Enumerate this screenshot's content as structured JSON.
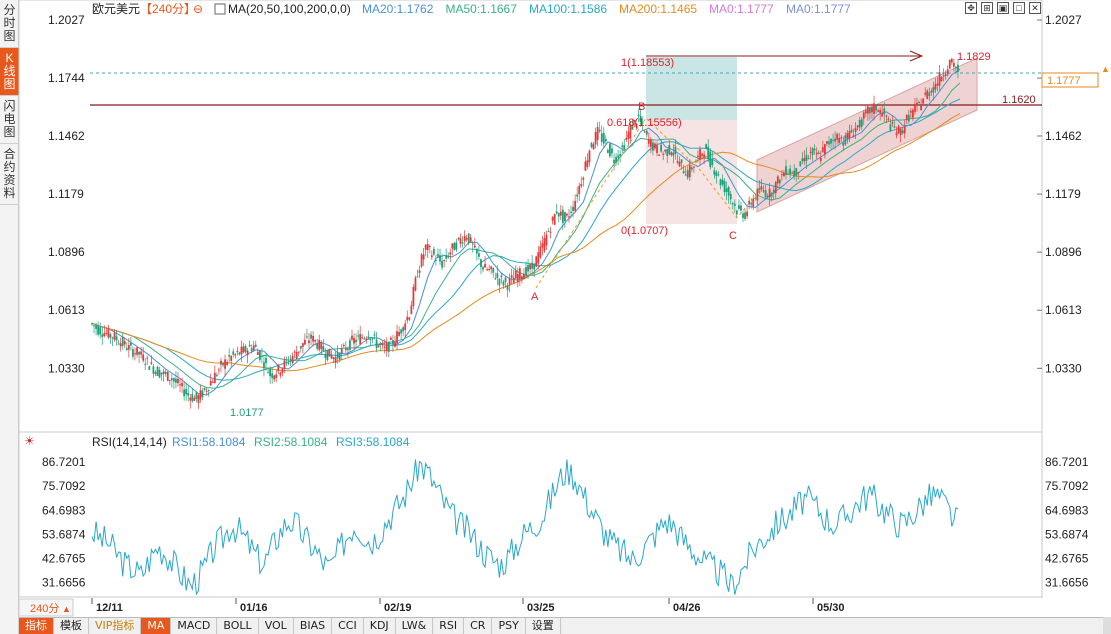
{
  "left_tabs": [
    {
      "label": "分时图",
      "active": false
    },
    {
      "label": "K线图",
      "active": true
    },
    {
      "label": "闪电图",
      "active": false
    },
    {
      "label": "合约资料",
      "active": false
    }
  ],
  "header": {
    "symbol": "欧元美元",
    "period": "【240分】",
    "ma_params": "MA(20,50,100,200,0,0)",
    "ma_values": [
      {
        "text": "MA20:1.1762",
        "color": "#4a90d9"
      },
      {
        "text": "MA50:1.1667",
        "color": "#3bb08a"
      },
      {
        "text": "MA100:1.1586",
        "color": "#2aa7c9"
      },
      {
        "text": "MA200:1.1465",
        "color": "#e88a1a"
      },
      {
        "text": "MA0:1.1777",
        "color": "#d27ad8"
      },
      {
        "text": "MA0:1.1777",
        "color": "#7e8fe0"
      }
    ]
  },
  "toolbar_icons": [
    "move-icon",
    "zoom-icon",
    "window-icon",
    "maximize-icon",
    "close-icon"
  ],
  "price_axis": {
    "labels": [
      "1.2027",
      "1.1744",
      "1.1462",
      "1.1179",
      "1.0896",
      "1.0613",
      "1.0330"
    ],
    "current_price": "1.1777"
  },
  "annotations": {
    "fib_top": "1(1.18553)",
    "fib_618": "0.618(1.15556)",
    "fib_zero": "0(1.0707)",
    "point_a": "A",
    "point_b": "B",
    "point_c": "C",
    "high_label": "1.1829",
    "resistance_label": "1.1620",
    "low_label": "1.0177"
  },
  "rsi": {
    "title": "RSI(14,14,14)",
    "rsi1": "RSI1:58.1084",
    "rsi2": "RSI2:58.1084",
    "rsi3": "RSI3:58.1084",
    "axis_labels": [
      "86.7201",
      "75.7092",
      "64.6983",
      "53.6874",
      "42.6765",
      "31.6656"
    ]
  },
  "time_axis": {
    "period_badge": "240分",
    "labels": [
      "12/11",
      "01/16",
      "02/19",
      "03/25",
      "04/26",
      "05/30"
    ]
  },
  "bottom_tabs": [
    {
      "label": "指标",
      "style": "active"
    },
    {
      "label": "模板",
      "style": "plain"
    },
    {
      "label": "VIP指标",
      "style": "vip"
    },
    {
      "label": "MA",
      "style": "active"
    },
    {
      "label": "MACD",
      "style": "plain"
    },
    {
      "label": "BOLL",
      "style": "plain"
    },
    {
      "label": "VOL",
      "style": "plain"
    },
    {
      "label": "BIAS",
      "style": "plain"
    },
    {
      "label": "CCI",
      "style": "plain"
    },
    {
      "label": "KDJ",
      "style": "plain"
    },
    {
      "label": "LW&",
      "style": "plain"
    },
    {
      "label": "RSI",
      "style": "plain"
    },
    {
      "label": "CR",
      "style": "plain"
    },
    {
      "label": "PSY",
      "style": "plain"
    },
    {
      "label": "设置",
      "style": "plain"
    }
  ],
  "colors": {
    "up": "#e23b3b",
    "down": "#1f9e7a",
    "ma20": "#4a90d9",
    "ma50": "#3bb08a",
    "ma100": "#2aa7c9",
    "ma200": "#e88a1a",
    "resistance": "#8b1a1a",
    "current_line": "#3fa5b8",
    "annotation": "#e0202a"
  },
  "chart_data": {
    "type": "candlestick",
    "price_range": [
      1.0177,
      1.2027
    ],
    "price_ticks": [
      1.2027,
      1.1744,
      1.1462,
      1.1179,
      1.0896,
      1.0613,
      1.033
    ],
    "key_points": [
      {
        "label": "low",
        "date": "12/11-01/16",
        "price": 1.0177
      },
      {
        "label": "A",
        "price": 1.0707
      },
      {
        "label": "B",
        "price": 1.18553
      },
      {
        "label": "C",
        "price": 1.0707
      },
      {
        "label": "high",
        "price": 1.1829
      }
    ],
    "price_path": [
      1.055,
      1.052,
      1.05,
      1.048,
      1.045,
      1.042,
      1.04,
      1.036,
      1.032,
      1.03,
      1.028,
      1.024,
      1.02,
      1.018,
      1.022,
      1.028,
      1.034,
      1.038,
      1.04,
      1.042,
      1.044,
      1.038,
      1.03,
      1.032,
      1.036,
      1.04,
      1.045,
      1.048,
      1.044,
      1.04,
      1.038,
      1.042,
      1.046,
      1.048,
      1.05,
      1.045,
      1.042,
      1.046,
      1.052,
      1.06,
      1.08,
      1.092,
      1.088,
      1.084,
      1.09,
      1.095,
      1.098,
      1.09,
      1.082,
      1.08,
      1.076,
      1.074,
      1.078,
      1.08,
      1.082,
      1.09,
      1.1,
      1.11,
      1.105,
      1.112,
      1.125,
      1.14,
      1.148,
      1.142,
      1.135,
      1.14,
      1.15,
      1.155,
      1.145,
      1.14,
      1.138,
      1.14,
      1.132,
      1.128,
      1.134,
      1.14,
      1.132,
      1.124,
      1.118,
      1.11,
      1.108,
      1.116,
      1.12,
      1.118,
      1.124,
      1.13,
      1.128,
      1.134,
      1.138,
      1.136,
      1.142,
      1.146,
      1.144,
      1.148,
      1.152,
      1.158,
      1.16,
      1.156,
      1.15,
      1.148,
      1.156,
      1.16,
      1.166,
      1.17,
      1.176,
      1.182,
      1.178
    ],
    "fibonacci": {
      "level_1": 1.18553,
      "level_0618": 1.15556,
      "level_0": 1.0707
    },
    "resistance": 1.162,
    "current": 1.1777,
    "rsi": {
      "range": [
        25,
        90
      ],
      "ticks": [
        86.7201,
        75.7092,
        64.6983,
        53.6874,
        42.6765,
        31.6656
      ],
      "values": [
        55,
        52,
        50,
        45,
        40,
        38,
        35,
        42,
        48,
        45,
        40,
        35,
        30,
        34,
        40,
        48,
        52,
        58,
        55,
        50,
        44,
        40,
        48,
        55,
        60,
        58,
        52,
        48,
        42,
        38,
        45,
        52,
        58,
        55,
        50,
        54,
        60,
        65,
        70,
        78,
        86,
        82,
        75,
        68,
        62,
        58,
        55,
        50,
        45,
        42,
        40,
        44,
        50,
        55,
        58,
        62,
        70,
        78,
        84,
        80,
        72,
        65,
        58,
        52,
        48,
        45,
        42,
        46,
        50,
        55,
        60,
        58,
        52,
        48,
        44,
        40,
        38,
        35,
        30,
        35,
        42,
        48,
        52,
        56,
        60,
        62,
        66,
        70,
        68,
        64,
        60,
        58,
        62,
        66,
        70,
        72,
        68,
        64,
        60,
        58,
        62,
        66,
        70,
        72,
        68,
        62,
        58
      ]
    },
    "time_labels": [
      "12/11",
      "01/16",
      "02/19",
      "03/25",
      "04/26",
      "05/30"
    ]
  }
}
